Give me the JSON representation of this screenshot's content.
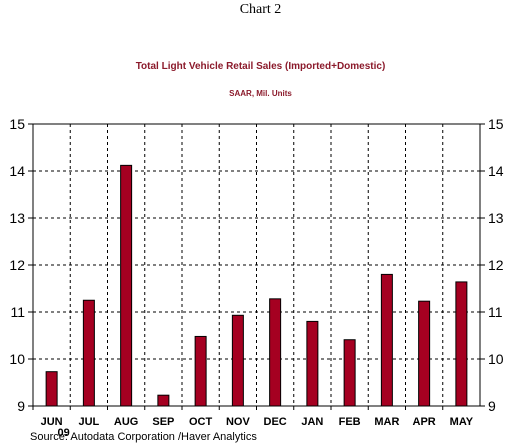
{
  "header": {
    "chart_number": "Chart 2"
  },
  "source_text": "Source:  Autodata Corporation /Haver Analytics",
  "colors": {
    "bar_fill": "#a50021",
    "bar_stroke": "#000000",
    "title": "#8b1a2b",
    "grid": "#000000"
  },
  "chart_data": {
    "type": "bar",
    "title": "Total Light Vehicle Retail Sales (Imported+Domestic)",
    "subtitle": "SAAR, Mil. Units",
    "categories": [
      "JUN",
      "JUL",
      "AUG",
      "SEP",
      "OCT",
      "NOV",
      "DEC",
      "JAN",
      "FEB",
      "MAR",
      "APR",
      "MAY"
    ],
    "year_label": "09",
    "values": [
      9.73,
      11.25,
      14.12,
      9.23,
      10.48,
      10.93,
      11.28,
      10.8,
      10.41,
      11.8,
      11.23,
      11.64
    ],
    "ylim": [
      9,
      15
    ],
    "yticks": [
      9,
      10,
      11,
      12,
      13,
      14,
      15
    ],
    "grid": true,
    "grid_style": "dashed",
    "y_axis_both_sides": true
  }
}
